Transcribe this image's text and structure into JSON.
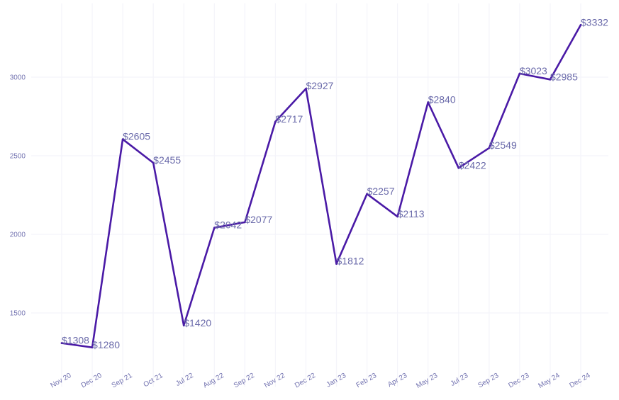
{
  "chart_data": {
    "type": "line",
    "title": "",
    "xlabel": "",
    "ylabel": "",
    "categories": [
      "Nov 20",
      "Dec 20",
      "Sep 21",
      "Oct 21",
      "Jul 22",
      "Aug 22",
      "Sep 22",
      "Nov 22",
      "Dec 22",
      "Jan 23",
      "Feb 23",
      "Apr 23",
      "May 23",
      "Jul 23",
      "Sep 23",
      "Dec 23",
      "May 24",
      "Dec 24"
    ],
    "series": [
      {
        "name": "Value",
        "values": [
          1308,
          1280,
          2605,
          2455,
          1420,
          2042,
          2077,
          2717,
          2927,
          1812,
          2257,
          2113,
          2840,
          2422,
          2549,
          3023,
          2985,
          3332
        ],
        "labels": [
          "$1308",
          "$1280",
          "$2605",
          "$2455",
          "$1420",
          "$2042",
          "$2077",
          "$2717",
          "$2927",
          "$1812",
          "$2257",
          "$2113",
          "$2840",
          "$2422",
          "$2549",
          "$3023",
          "$2985",
          "$3332"
        ]
      }
    ],
    "yticks": [
      1500,
      2000,
      2500,
      3000
    ],
    "ytick_labels": [
      "1500",
      "2000",
      "2500",
      "3000"
    ],
    "ylim": [
      1030,
      3470
    ],
    "grid": true,
    "colors": {
      "line": "#4a1aa6",
      "label": "#6a6aaa",
      "tick": "#7272b0",
      "grid": "#f4f4fa"
    }
  }
}
